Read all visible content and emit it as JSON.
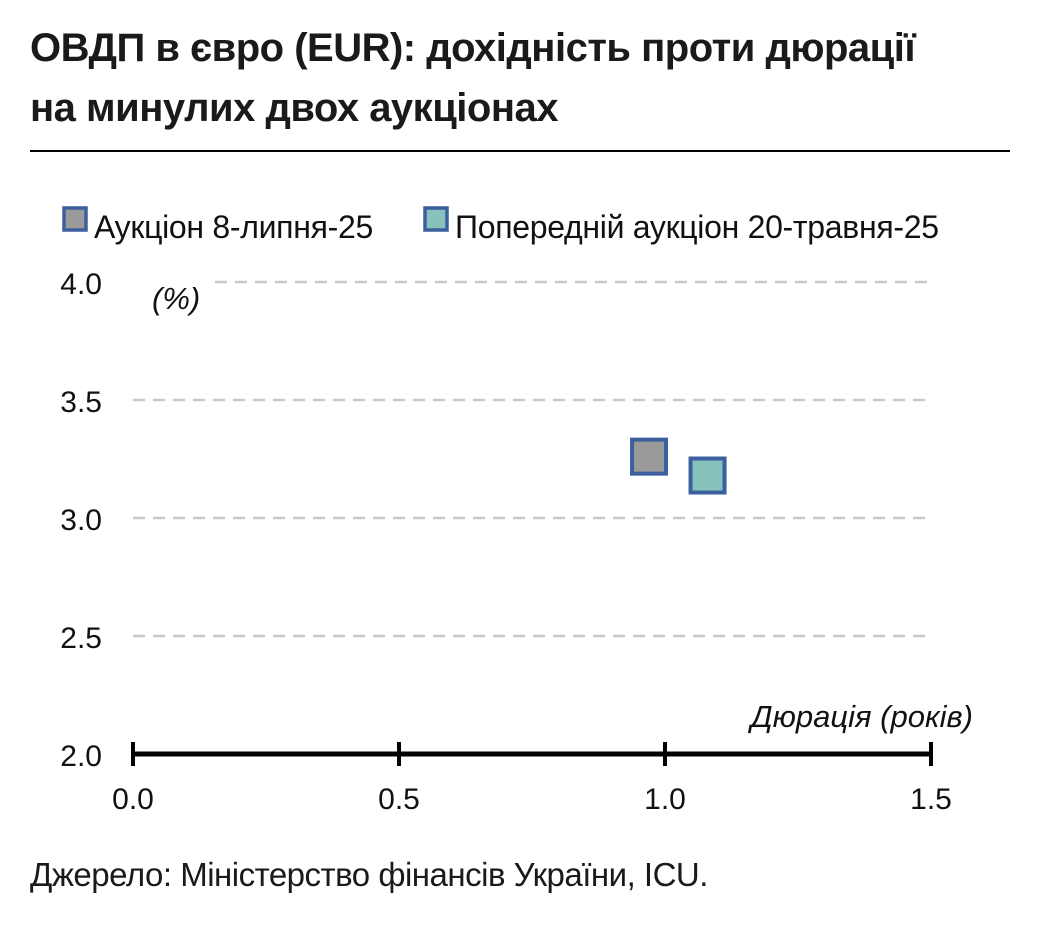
{
  "header": {
    "title_line1": "ОВДП в євро (EUR): дохідність проти дюрації",
    "title_line2": "на минулих двох аукціонах"
  },
  "footer": {
    "source": "Джерело: Міністерство фінансів України, ICU."
  },
  "colors": {
    "series_current": "#9a9a9a",
    "series_previous": "#86c1bc",
    "marker_border": "#3c5f9e",
    "grid": "#c8c8c8",
    "axis": "#000000"
  },
  "chart_data": {
    "type": "scatter",
    "title": "ОВДП в євро (EUR): дохідність проти дюрації на минулих двох аукціонах",
    "xlabel": "Дюрація (років)",
    "ylabel": "(%)",
    "xlim": [
      0.0,
      1.5
    ],
    "ylim": [
      2.0,
      4.0
    ],
    "x_ticks": [
      "0.0",
      "0.5",
      "1.0",
      "1.5"
    ],
    "y_ticks": [
      "2.0",
      "2.5",
      "3.0",
      "3.5",
      "4.0"
    ],
    "grid": "horizontal dashed",
    "legend_position": "top",
    "series": [
      {
        "name": "Аукціон 8-липня-25",
        "points": [
          {
            "x": 0.97,
            "y": 3.26
          }
        ]
      },
      {
        "name": "Попередній аукціон 20-травня-25",
        "points": [
          {
            "x": 1.08,
            "y": 3.18
          }
        ]
      }
    ]
  }
}
